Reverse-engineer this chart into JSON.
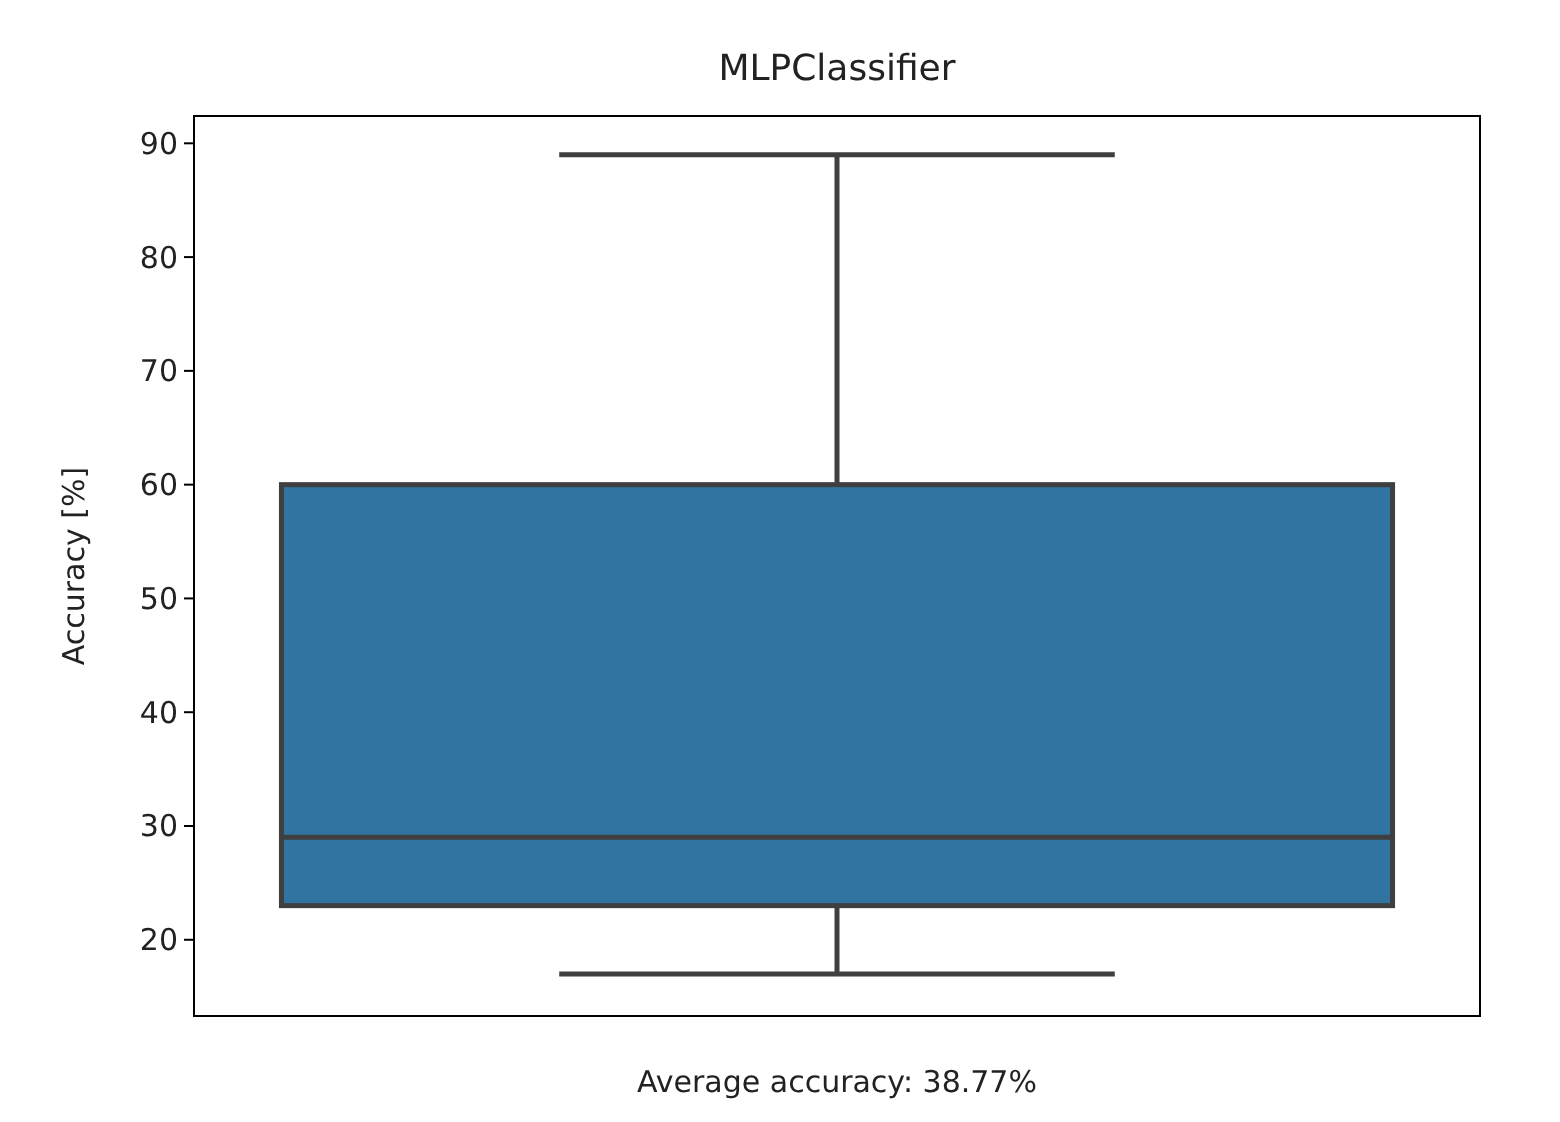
{
  "chart_data": {
    "type": "box",
    "title": "MLPClassifier",
    "xlabel": "Average accuracy: 38.77%",
    "ylabel": "Accuracy [%]",
    "categories": [
      null
    ],
    "boxes": [
      {
        "low": 17,
        "q1": 23,
        "median": 29,
        "q3": 60,
        "high": 89
      }
    ],
    "color": "#3274a1",
    "ylim": [
      13.3,
      92.4
    ],
    "yticks": [
      20,
      30,
      40,
      50,
      60,
      70,
      80,
      90
    ],
    "grid": false
  }
}
